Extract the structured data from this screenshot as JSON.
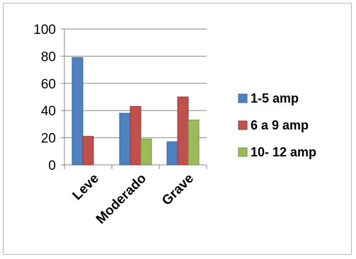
{
  "chart_data": {
    "type": "bar",
    "categories": [
      "Leve",
      "Moderado",
      "Grave"
    ],
    "series": [
      {
        "name": "1-5 amp",
        "values": [
          79,
          38,
          17
        ],
        "color": "#4f81bd",
        "stroke": "#3a6395"
      },
      {
        "name": "6 a 9 amp",
        "values": [
          21,
          43,
          50
        ],
        "color": "#c0504d",
        "stroke": "#8f3b39"
      },
      {
        "name": "10- 12 amp",
        "values": [
          0,
          19,
          33
        ],
        "color": "#9bbb59",
        "stroke": "#758e43"
      }
    ],
    "yticks": [
      "0",
      "20",
      "40",
      "60",
      "80",
      "100"
    ],
    "ylim": [
      0,
      100
    ],
    "grid": true,
    "legend_position": "right",
    "title": "",
    "xlabel": "",
    "ylabel": ""
  }
}
